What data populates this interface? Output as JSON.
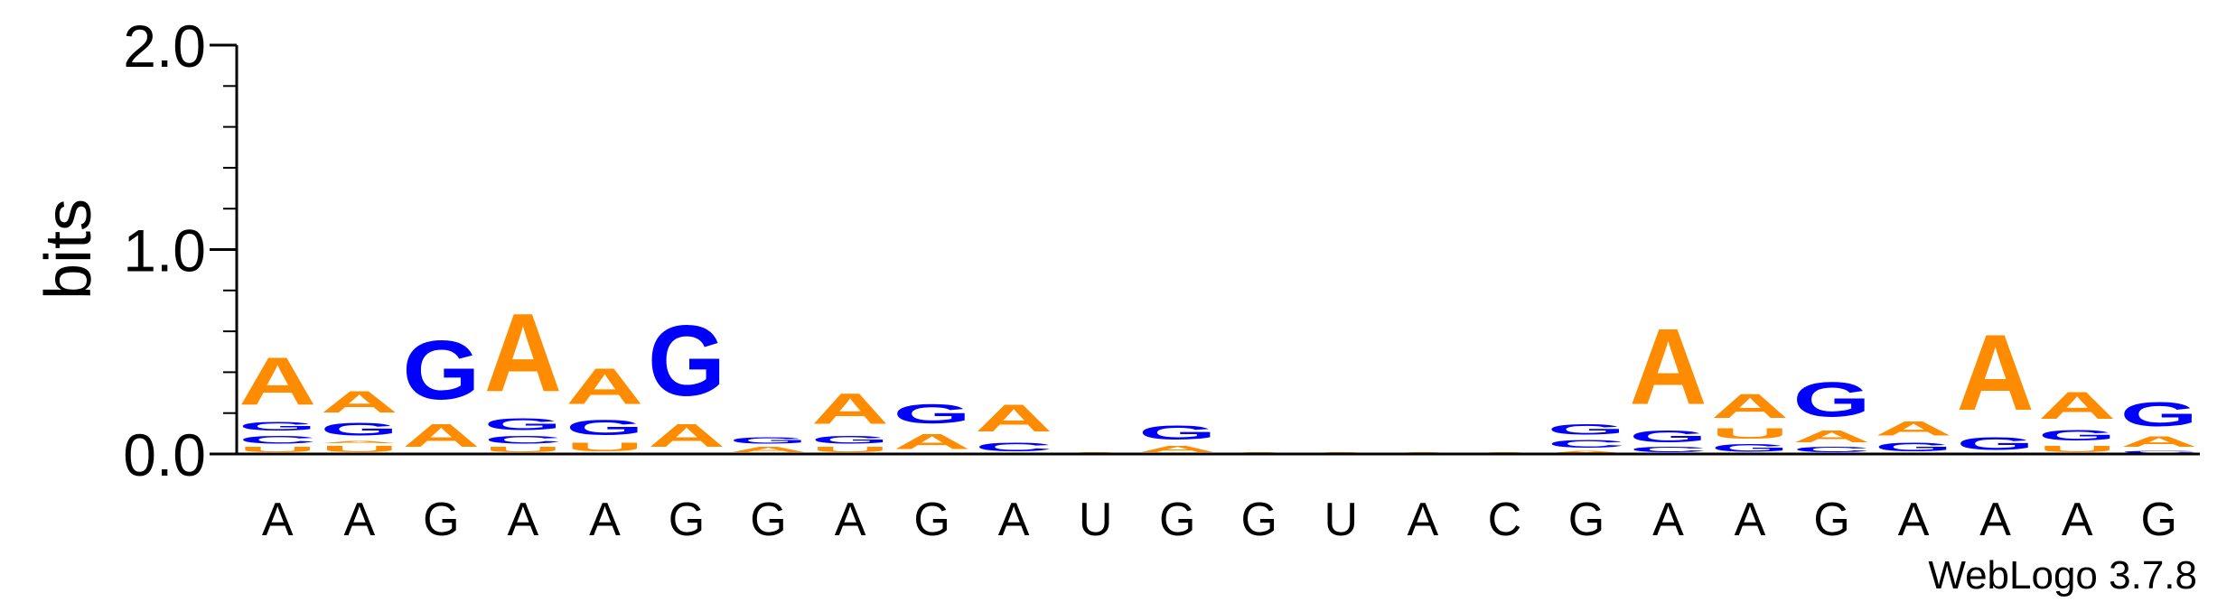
{
  "chart_data": {
    "type": "sequence-logo",
    "ylabel": "bits",
    "ylim": [
      0,
      2.0
    ],
    "yticks": [
      "0.0",
      "1.0",
      "2.0"
    ],
    "colors": {
      "A": "#FF8C00",
      "G": "#0000FF",
      "C": "#0000FF",
      "U": "#FF8C00"
    },
    "consensus": [
      "A",
      "A",
      "G",
      "A",
      "A",
      "G",
      "G",
      "A",
      "G",
      "A",
      "U",
      "G",
      "G",
      "U",
      "A",
      "C",
      "G",
      "A",
      "A",
      "G",
      "A",
      "A",
      "A",
      "G"
    ],
    "positions": [
      [
        [
          "U",
          0.04
        ],
        [
          "C",
          0.06
        ],
        [
          "G",
          0.07
        ],
        [
          "A",
          0.37
        ]
      ],
      [
        [
          "U",
          0.05
        ],
        [
          "A",
          0.02
        ],
        [
          "G",
          0.1
        ],
        [
          "A",
          0.17
        ]
      ],
      [
        [
          "A",
          0.18
        ],
        [
          "G",
          0.46
        ]
      ],
      [
        [
          "U",
          0.04
        ],
        [
          "C",
          0.06
        ],
        [
          "G",
          0.09
        ],
        [
          "A",
          0.61
        ]
      ],
      [
        [
          "U",
          0.07
        ],
        [
          "G",
          0.12
        ],
        [
          "A",
          0.28
        ]
      ],
      [
        [
          "A",
          0.18
        ],
        [
          "G",
          0.55
        ]
      ],
      [
        [
          "A",
          0.04
        ],
        [
          "G",
          0.05
        ]
      ],
      [
        [
          "U",
          0.04
        ],
        [
          "G",
          0.06
        ],
        [
          "A",
          0.24
        ]
      ],
      [
        [
          "A",
          0.12
        ],
        [
          "G",
          0.15
        ]
      ],
      [
        [
          "C",
          0.07
        ],
        [
          "A",
          0.21
        ]
      ],
      [
        [
          "A",
          0.01
        ]
      ],
      [
        [
          "A",
          0.05
        ],
        [
          "G",
          0.11
        ]
      ],
      [
        [
          "A",
          0.01
        ]
      ],
      [
        [
          "A",
          0.01
        ]
      ],
      [
        [
          "A",
          0.01
        ]
      ],
      [
        [
          "A",
          0.01
        ]
      ],
      [
        [
          "A",
          0.02
        ],
        [
          "C",
          0.06
        ],
        [
          "G",
          0.08
        ]
      ],
      [
        [
          "C",
          0.04
        ],
        [
          "G",
          0.09
        ],
        [
          "A",
          0.59
        ]
      ],
      [
        [
          "G",
          0.06
        ],
        [
          "U",
          0.08
        ],
        [
          "A",
          0.19
        ]
      ],
      [
        [
          "C",
          0.04
        ],
        [
          "A",
          0.09
        ],
        [
          "G",
          0.27
        ]
      ],
      [
        [
          "G",
          0.07
        ],
        [
          "A",
          0.11
        ]
      ],
      [
        [
          "G",
          0.1
        ],
        [
          "A",
          0.59
        ]
      ],
      [
        [
          "U",
          0.05
        ],
        [
          "G",
          0.08
        ],
        [
          "A",
          0.21
        ]
      ],
      [
        [
          "C",
          0.02
        ],
        [
          "A",
          0.08
        ],
        [
          "G",
          0.19
        ]
      ]
    ]
  },
  "credit": "WebLogo 3.7.8"
}
